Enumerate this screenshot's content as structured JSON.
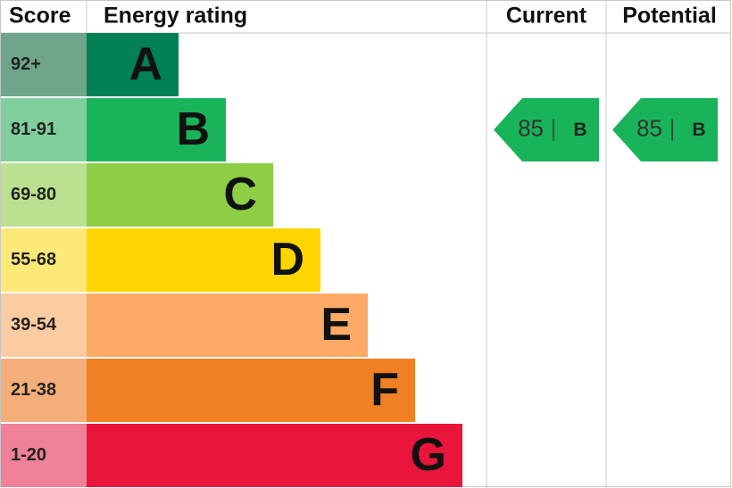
{
  "header": {
    "score": "Score",
    "energy_rating": "Energy rating",
    "current": "Current",
    "potential": "Potential"
  },
  "bands": [
    {
      "score": "92+",
      "letter": "A",
      "color": "#008054",
      "score_color": "#6fa68b"
    },
    {
      "score": "81-91",
      "letter": "B",
      "color": "#19b459",
      "score_color": "#7fcf9c"
    },
    {
      "score": "69-80",
      "letter": "C",
      "color": "#8dce46",
      "score_color": "#bbe190"
    },
    {
      "score": "55-68",
      "letter": "D",
      "color": "#ffd500",
      "score_color": "#fde978"
    },
    {
      "score": "39-54",
      "letter": "E",
      "color": "#fcaa65",
      "score_color": "#fbcba2"
    },
    {
      "score": "21-38",
      "letter": "F",
      "color": "#ef8023",
      "score_color": "#f3ae7a"
    },
    {
      "score": "1-20",
      "letter": "G",
      "color": "#e9153b",
      "score_color": "#ef8199"
    }
  ],
  "current": {
    "value": 85,
    "letter": "B",
    "color": "#19b459"
  },
  "potential": {
    "value": 85,
    "letter": "B",
    "color": "#19b459"
  }
}
